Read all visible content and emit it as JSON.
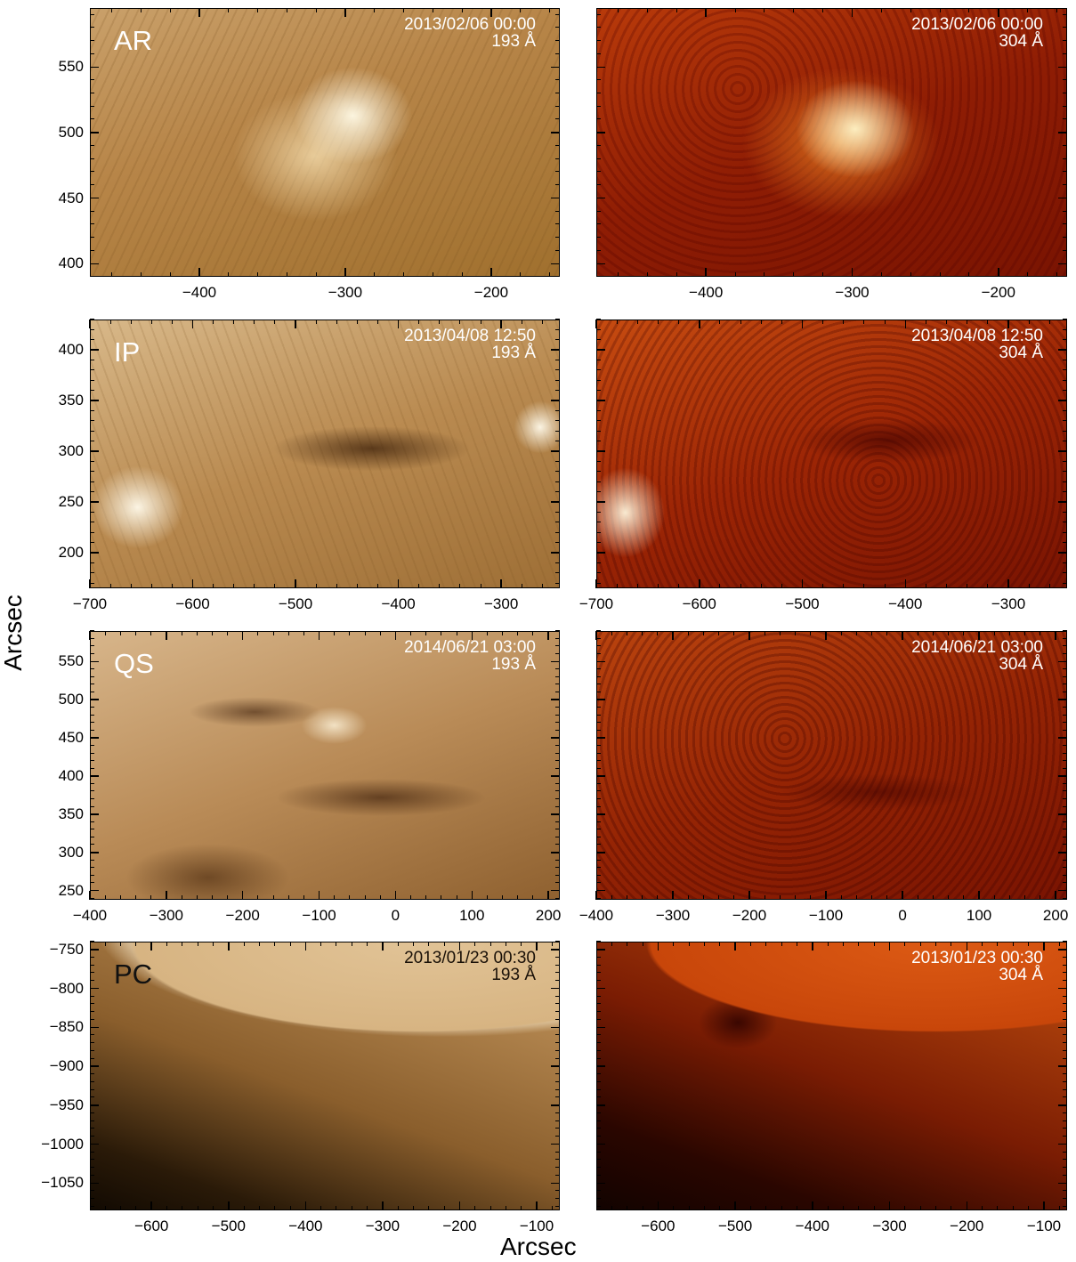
{
  "figure": {
    "x_axis_title": "Arcsec",
    "y_axis_title": "Arcsec"
  },
  "rows": [
    {
      "region": "AR",
      "timestamp": "2013/02/06 00:00",
      "xlim": [
        -475,
        -153
      ],
      "ylim": [
        390,
        595
      ],
      "xticks": [
        -400,
        -300,
        -200
      ],
      "yticks": [
        400,
        450,
        500,
        550
      ]
    },
    {
      "region": "IP",
      "timestamp": "2013/04/08 12:50",
      "xlim": [
        -700,
        -243
      ],
      "ylim": [
        165,
        430
      ],
      "xticks": [
        -700,
        -600,
        -500,
        -400,
        -300
      ],
      "yticks": [
        200,
        250,
        300,
        350,
        400
      ]
    },
    {
      "region": "QS",
      "timestamp": "2014/06/21 03:00",
      "xlim": [
        -400,
        215
      ],
      "ylim": [
        238,
        590
      ],
      "xticks": [
        -400,
        -300,
        -200,
        -100,
        0,
        100,
        200
      ],
      "yticks": [
        250,
        300,
        350,
        400,
        450,
        500,
        550
      ]
    },
    {
      "region": "PC",
      "timestamp": "2013/01/23 00:30",
      "xlim": [
        -680,
        -70
      ],
      "ylim": [
        -1085,
        -740
      ],
      "xticks": [
        -600,
        -500,
        -400,
        -300,
        -200,
        -100
      ],
      "yticks": [
        -750,
        -800,
        -850,
        -900,
        -950,
        -1000,
        -1050
      ]
    }
  ],
  "wavelengths": [
    "193 Å",
    "304 Å"
  ]
}
